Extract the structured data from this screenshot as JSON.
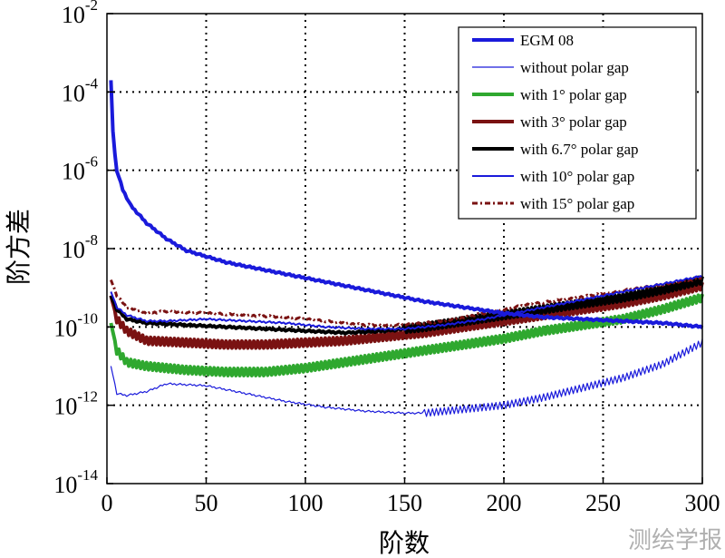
{
  "chart_data": {
    "type": "line",
    "title": "",
    "xlabel": "阶数",
    "ylabel": "阶方差",
    "xlim": [
      0,
      300
    ],
    "ylim_log10": [
      -14,
      -2
    ],
    "yscale": "log",
    "grid": "dotted",
    "legend_position": "top-right",
    "x_ticks": [
      "0",
      "50",
      "100",
      "150",
      "200",
      "250",
      "300"
    ],
    "y_ticks": [
      {
        "base": "10",
        "exp": "-2"
      },
      {
        "base": "10",
        "exp": "-4"
      },
      {
        "base": "10",
        "exp": "-6"
      },
      {
        "base": "10",
        "exp": "-8"
      },
      {
        "base": "10",
        "exp": "-10"
      },
      {
        "base": "10",
        "exp": "-12"
      },
      {
        "base": "10",
        "exp": "-14"
      }
    ],
    "series": [
      {
        "name": "EGM 08",
        "color": "#1a1adb",
        "style": "solid-thick",
        "log10_points": [
          [
            2,
            -3.7
          ],
          [
            3,
            -5.0
          ],
          [
            4,
            -5.6
          ],
          [
            5,
            -6.0
          ],
          [
            8,
            -6.5
          ],
          [
            12,
            -6.9
          ],
          [
            20,
            -7.35
          ],
          [
            30,
            -7.75
          ],
          [
            40,
            -8.05
          ],
          [
            60,
            -8.35
          ],
          [
            80,
            -8.55
          ],
          [
            100,
            -8.75
          ],
          [
            120,
            -8.95
          ],
          [
            140,
            -9.15
          ],
          [
            160,
            -9.35
          ],
          [
            180,
            -9.5
          ],
          [
            200,
            -9.65
          ],
          [
            220,
            -9.75
          ],
          [
            240,
            -9.8
          ],
          [
            260,
            -9.85
          ],
          [
            280,
            -9.9
          ],
          [
            300,
            -10.0
          ]
        ]
      },
      {
        "name": "without polar gap",
        "color": "#1a1adb",
        "style": "solid-thin",
        "log10_points": [
          [
            2,
            -11.0
          ],
          [
            5,
            -11.7
          ],
          [
            10,
            -11.75
          ],
          [
            20,
            -11.65
          ],
          [
            30,
            -11.45
          ],
          [
            50,
            -11.5
          ],
          [
            70,
            -11.7
          ],
          [
            90,
            -11.9
          ],
          [
            110,
            -12.05
          ],
          [
            130,
            -12.15
          ],
          [
            150,
            -12.2
          ],
          [
            160,
            -12.2
          ],
          [
            180,
            -12.1
          ],
          [
            200,
            -12.0
          ],
          [
            220,
            -11.8
          ],
          [
            240,
            -11.55
          ],
          [
            260,
            -11.3
          ],
          [
            280,
            -10.95
          ],
          [
            300,
            -10.4
          ]
        ],
        "oscillating_from": 160
      },
      {
        "name": "with 1°  polar gap",
        "color": "#2fa82f",
        "style": "solid-thick",
        "log10_points": [
          [
            2,
            -9.9
          ],
          [
            5,
            -10.6
          ],
          [
            10,
            -10.9
          ],
          [
            20,
            -11.0
          ],
          [
            40,
            -11.1
          ],
          [
            60,
            -11.15
          ],
          [
            80,
            -11.15
          ],
          [
            100,
            -11.05
          ],
          [
            120,
            -10.9
          ],
          [
            140,
            -10.75
          ],
          [
            160,
            -10.6
          ],
          [
            180,
            -10.45
          ],
          [
            200,
            -10.3
          ],
          [
            220,
            -10.1
          ],
          [
            240,
            -9.95
          ],
          [
            260,
            -9.8
          ],
          [
            280,
            -9.55
          ],
          [
            300,
            -9.25
          ]
        ],
        "oscillating_from": 5
      },
      {
        "name": "with 3°  polar gap",
        "color": "#7a1212",
        "style": "solid-thick",
        "log10_points": [
          [
            2,
            -9.2
          ],
          [
            5,
            -9.8
          ],
          [
            10,
            -10.1
          ],
          [
            20,
            -10.35
          ],
          [
            40,
            -10.4
          ],
          [
            60,
            -10.45
          ],
          [
            80,
            -10.45
          ],
          [
            100,
            -10.4
          ],
          [
            120,
            -10.35
          ],
          [
            140,
            -10.25
          ],
          [
            160,
            -10.15
          ],
          [
            180,
            -10.0
          ],
          [
            200,
            -9.85
          ],
          [
            220,
            -9.7
          ],
          [
            240,
            -9.55
          ],
          [
            260,
            -9.4
          ],
          [
            280,
            -9.2
          ],
          [
            300,
            -8.95
          ]
        ],
        "oscillating_from": 5
      },
      {
        "name": "with 6.7°  polar gap",
        "color": "#000000",
        "style": "solid-thick",
        "log10_points": [
          [
            2,
            -9.2
          ],
          [
            5,
            -9.55
          ],
          [
            10,
            -9.8
          ],
          [
            20,
            -9.9
          ],
          [
            40,
            -9.95
          ],
          [
            60,
            -10.0
          ],
          [
            80,
            -10.05
          ],
          [
            100,
            -10.1
          ],
          [
            120,
            -10.15
          ],
          [
            140,
            -10.1
          ],
          [
            160,
            -10.0
          ],
          [
            180,
            -9.85
          ],
          [
            200,
            -9.7
          ],
          [
            220,
            -9.55
          ],
          [
            240,
            -9.4
          ],
          [
            260,
            -9.25
          ],
          [
            280,
            -9.05
          ],
          [
            300,
            -8.8
          ]
        ],
        "oscillating_from": 150
      },
      {
        "name": "with 10°  polar gap",
        "color": "#1a1adb",
        "style": "solid-medium",
        "log10_points": [
          [
            2,
            -9.1
          ],
          [
            5,
            -9.5
          ],
          [
            10,
            -9.7
          ],
          [
            20,
            -9.85
          ],
          [
            30,
            -9.85
          ],
          [
            50,
            -9.8
          ],
          [
            70,
            -9.85
          ],
          [
            90,
            -9.9
          ],
          [
            110,
            -10.0
          ],
          [
            130,
            -10.05
          ],
          [
            150,
            -10.05
          ],
          [
            170,
            -9.95
          ],
          [
            190,
            -9.8
          ],
          [
            210,
            -9.6
          ],
          [
            230,
            -9.4
          ],
          [
            250,
            -9.2
          ],
          [
            270,
            -9.0
          ],
          [
            300,
            -8.7
          ]
        ]
      },
      {
        "name": "with 15°  polar gap",
        "color": "#7a1212",
        "style": "dashdot",
        "log10_points": [
          [
            2,
            -8.8
          ],
          [
            5,
            -9.2
          ],
          [
            10,
            -9.5
          ],
          [
            20,
            -9.65
          ],
          [
            30,
            -9.6
          ],
          [
            50,
            -9.65
          ],
          [
            70,
            -9.7
          ],
          [
            90,
            -9.75
          ],
          [
            110,
            -9.85
          ],
          [
            130,
            -9.95
          ],
          [
            150,
            -9.95
          ],
          [
            170,
            -9.85
          ],
          [
            190,
            -9.65
          ],
          [
            210,
            -9.45
          ],
          [
            230,
            -9.3
          ],
          [
            250,
            -9.15
          ],
          [
            270,
            -9.0
          ],
          [
            300,
            -8.75
          ]
        ]
      }
    ]
  },
  "watermark": "测绘学报"
}
